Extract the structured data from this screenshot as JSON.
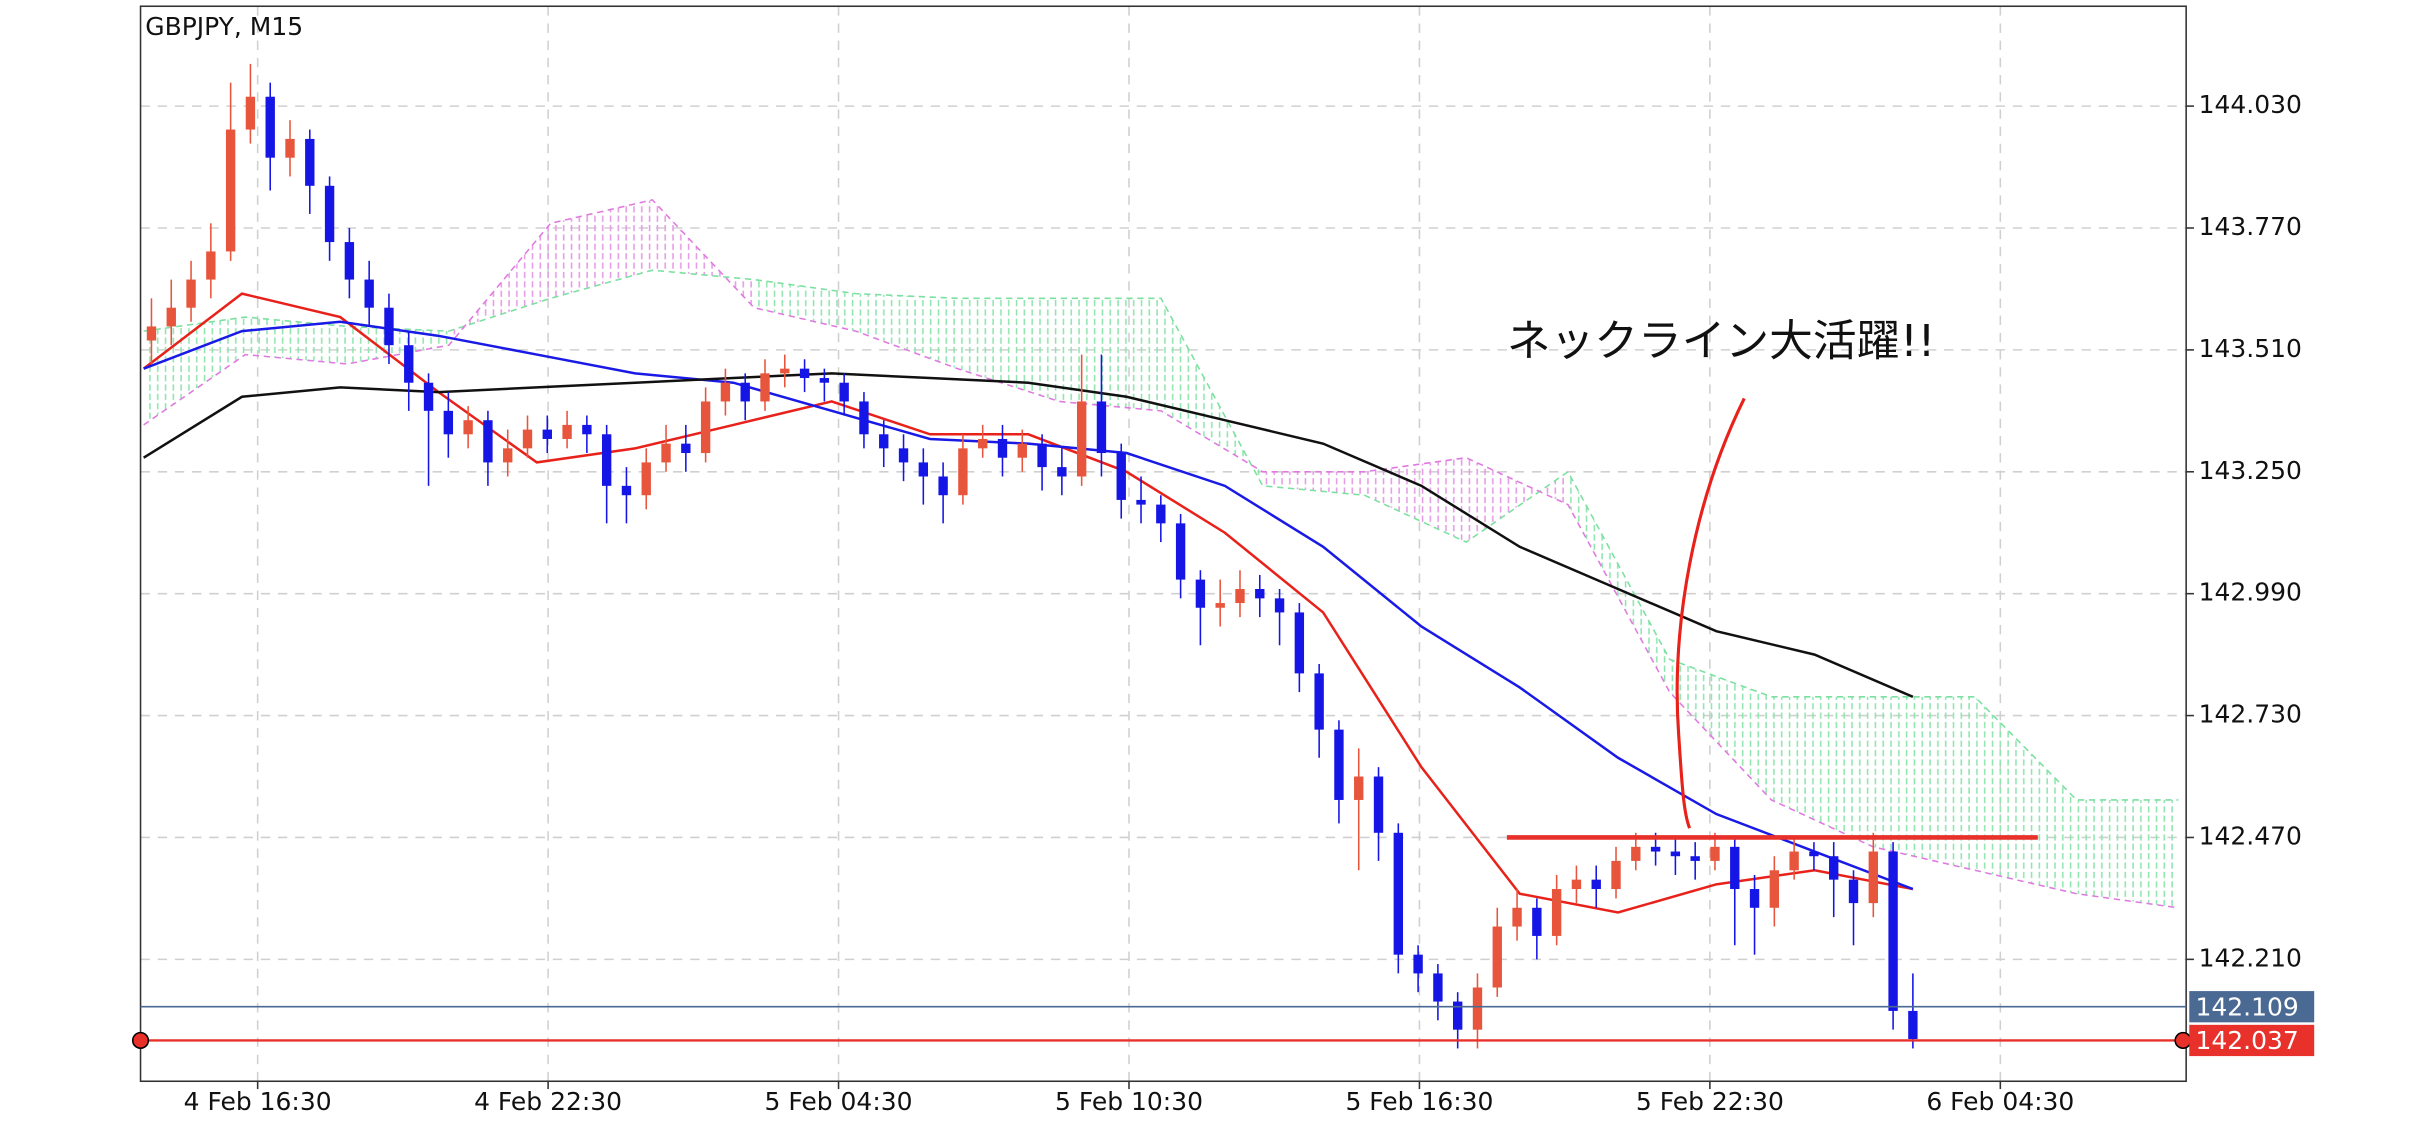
{
  "chart_data": {
    "type": "candlestick",
    "title": "GBPJPY, M15",
    "annotation": "ネックライン大活躍!!",
    "up_color": "#e8553d",
    "down_color": "#1515e6",
    "ylim": [
      141.95,
      144.243
    ],
    "yticks": [
      {
        "value": 144.03,
        "label": "144.030"
      },
      {
        "value": 143.77,
        "label": "143.770"
      },
      {
        "value": 143.51,
        "label": "143.510"
      },
      {
        "value": 143.25,
        "label": "143.250"
      },
      {
        "value": 142.99,
        "label": "142.990"
      },
      {
        "value": 142.73,
        "label": "142.730"
      },
      {
        "value": 142.47,
        "label": "142.470"
      },
      {
        "value": 142.21,
        "label": "142.210"
      }
    ],
    "xtick_labels": [
      "4 Feb 16:30",
      "4 Feb 22:30",
      "5 Feb 04:30",
      "5 Feb 10:30",
      "5 Feb 16:30",
      "5 Feb 22:30",
      "6 Feb 04:30"
    ],
    "grid": true,
    "open": [
      143.53,
      143.56,
      143.6,
      143.66,
      143.72,
      143.98,
      144.05,
      143.92,
      143.96,
      143.86,
      143.74,
      143.66,
      143.6,
      143.52,
      143.44,
      143.38,
      143.33,
      143.36,
      143.27,
      143.3,
      143.34,
      143.32,
      143.35,
      143.33,
      143.22,
      143.2,
      143.27,
      143.31,
      143.29,
      143.4,
      143.44,
      143.4,
      143.46,
      143.47,
      143.45,
      143.44,
      143.4,
      143.33,
      143.3,
      143.27,
      143.24,
      143.2,
      143.3,
      143.32,
      143.28,
      143.31,
      143.26,
      143.24,
      143.4,
      143.29,
      143.19,
      143.18,
      143.14,
      143.02,
      142.96,
      142.97,
      143.0,
      142.98,
      142.95,
      142.82,
      142.7,
      142.55,
      142.6,
      142.48,
      142.22,
      142.18,
      142.12,
      142.06,
      142.15,
      142.28,
      142.32,
      142.26,
      142.36,
      142.38,
      142.36,
      142.42,
      142.45,
      142.44,
      142.43,
      142.42,
      142.45,
      142.36,
      142.32,
      142.4,
      142.44,
      142.43,
      142.38,
      142.33,
      142.44,
      142.1
    ],
    "high": [
      143.62,
      143.66,
      143.7,
      143.78,
      144.08,
      144.12,
      144.08,
      144.0,
      143.98,
      143.88,
      143.77,
      143.7,
      143.63,
      143.55,
      143.46,
      143.42,
      143.39,
      143.38,
      143.34,
      143.37,
      143.37,
      143.38,
      143.37,
      143.35,
      143.26,
      143.3,
      143.35,
      143.35,
      143.43,
      143.47,
      143.46,
      143.49,
      143.5,
      143.49,
      143.47,
      143.46,
      143.42,
      143.36,
      143.33,
      143.3,
      143.27,
      143.33,
      143.35,
      143.35,
      143.34,
      143.33,
      143.3,
      143.5,
      143.5,
      143.31,
      143.24,
      143.2,
      143.16,
      143.04,
      143.02,
      143.04,
      143.03,
      143.0,
      142.97,
      142.84,
      142.72,
      142.66,
      142.62,
      142.5,
      142.24,
      142.2,
      142.14,
      142.18,
      142.32,
      142.36,
      142.34,
      142.39,
      142.41,
      142.41,
      142.45,
      142.48,
      142.48,
      142.47,
      142.46,
      142.48,
      142.47,
      142.39,
      142.43,
      142.47,
      142.46,
      142.46,
      142.4,
      142.48,
      142.46,
      142.18
    ],
    "low": [
      143.48,
      143.52,
      143.57,
      143.62,
      143.7,
      143.95,
      143.85,
      143.88,
      143.8,
      143.7,
      143.62,
      143.56,
      143.48,
      143.38,
      143.22,
      143.28,
      143.3,
      143.22,
      143.24,
      143.28,
      143.29,
      143.3,
      143.29,
      143.14,
      143.14,
      143.17,
      143.25,
      143.25,
      143.27,
      143.37,
      143.36,
      143.38,
      143.43,
      143.42,
      143.4,
      143.37,
      143.3,
      143.26,
      143.23,
      143.18,
      143.14,
      143.18,
      143.28,
      143.24,
      143.25,
      143.21,
      143.2,
      143.22,
      143.24,
      143.15,
      143.14,
      143.1,
      142.98,
      142.88,
      142.92,
      142.94,
      142.94,
      142.88,
      142.78,
      142.64,
      142.5,
      142.4,
      142.42,
      142.18,
      142.14,
      142.08,
      142.02,
      142.02,
      142.13,
      142.25,
      142.21,
      142.24,
      142.33,
      142.32,
      142.34,
      142.4,
      142.41,
      142.39,
      142.38,
      142.4,
      142.24,
      142.22,
      142.28,
      142.38,
      142.4,
      142.3,
      142.24,
      142.3,
      142.06,
      142.02
    ],
    "close": [
      143.56,
      143.6,
      143.66,
      143.72,
      143.98,
      144.05,
      143.92,
      143.96,
      143.86,
      143.74,
      143.66,
      143.6,
      143.52,
      143.44,
      143.38,
      143.33,
      143.36,
      143.27,
      143.3,
      143.34,
      143.32,
      143.35,
      143.33,
      143.22,
      143.2,
      143.27,
      143.31,
      143.29,
      143.4,
      143.44,
      143.4,
      143.46,
      143.47,
      143.45,
      143.44,
      143.4,
      143.33,
      143.3,
      143.27,
      143.24,
      143.2,
      143.3,
      143.32,
      143.28,
      143.31,
      143.26,
      143.24,
      143.4,
      143.29,
      143.19,
      143.18,
      143.14,
      143.02,
      142.96,
      142.97,
      143.0,
      142.98,
      142.95,
      142.82,
      142.7,
      142.55,
      142.6,
      142.48,
      142.22,
      142.18,
      142.12,
      142.06,
      142.15,
      142.28,
      142.32,
      142.26,
      142.36,
      142.38,
      142.36,
      142.42,
      142.45,
      142.44,
      142.43,
      142.42,
      142.45,
      142.36,
      142.32,
      142.4,
      142.44,
      142.43,
      142.38,
      142.33,
      142.44,
      142.1,
      142.04
    ],
    "lines": [
      {
        "color": "#e8211a",
        "values": [
          143.47,
          143.63,
          143.58,
          143.42,
          143.27,
          143.3,
          143.35,
          143.4,
          143.33,
          143.33,
          143.25,
          143.12,
          142.95,
          142.62,
          142.35,
          142.31,
          142.37,
          142.4,
          142.36
        ]
      },
      {
        "color": "#1a1ae6",
        "values": [
          143.47,
          143.55,
          143.57,
          143.54,
          143.5,
          143.46,
          143.44,
          143.38,
          143.32,
          143.31,
          143.29,
          143.22,
          143.09,
          142.92,
          142.79,
          142.64,
          142.52,
          142.44,
          142.36
        ]
      },
      {
        "color": "#111111",
        "values": [
          143.28,
          143.41,
          143.43,
          143.42,
          143.43,
          143.44,
          143.45,
          143.46,
          143.45,
          143.44,
          143.41,
          143.36,
          143.31,
          143.22,
          143.09,
          143.0,
          142.91,
          142.86,
          142.77
        ]
      }
    ],
    "cloud": {
      "span_a_color": "#7be0a0",
      "span_b_color": "#e07ae0",
      "span_a": [
        143.55,
        143.58,
        143.56,
        143.55,
        143.62,
        143.68,
        143.66,
        143.63,
        143.62,
        143.62,
        143.62,
        143.22,
        143.2,
        143.1,
        143.25,
        142.85,
        142.77,
        142.77,
        142.77,
        142.55,
        142.55
      ],
      "span_b": [
        143.35,
        143.5,
        143.48,
        143.52,
        143.78,
        143.83,
        143.6,
        143.55,
        143.47,
        143.4,
        143.38,
        143.25,
        143.25,
        143.28,
        143.18,
        142.78,
        142.55,
        142.45,
        142.4,
        142.35,
        142.32
      ]
    },
    "bid_line": {
      "value": 142.109,
      "color": "#4a6a94"
    },
    "ask_line": {
      "value": 142.037,
      "color": "#e8312a"
    },
    "neckline": {
      "value": 142.47,
      "color": "#e8312a"
    }
  }
}
